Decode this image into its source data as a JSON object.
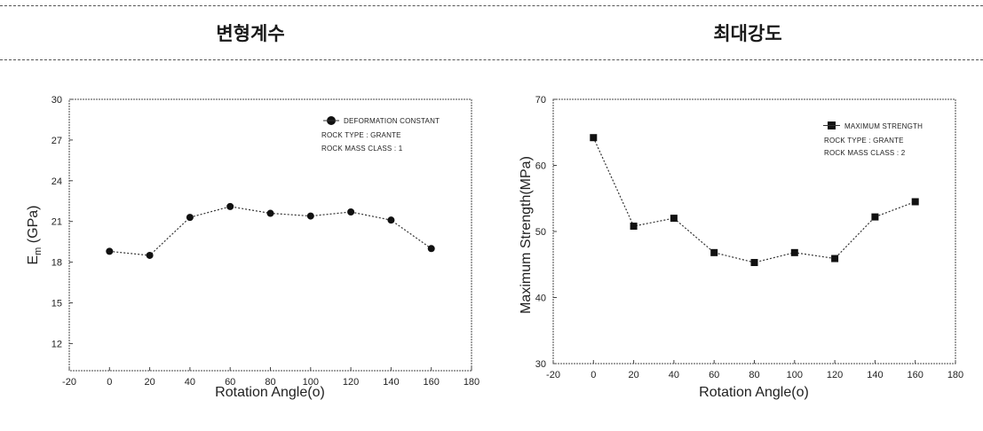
{
  "headers": {
    "left": "변형계수",
    "right": "최대강도"
  },
  "chart_data": [
    {
      "type": "line",
      "xlabel": "Rotation Angle(o)",
      "ylabel_main": "E",
      "ylabel_sub": "m",
      "ylabel_rest": " (GPa)",
      "xlim": [
        -20,
        180
      ],
      "ylim": [
        10,
        30
      ],
      "xticks": [
        "-20",
        "0",
        "20",
        "40",
        "60",
        "80",
        "100",
        "120",
        "140",
        "160",
        "180"
      ],
      "yticks": [
        "12",
        "15",
        "18",
        "21",
        "24",
        "27",
        "30"
      ],
      "legend": {
        "series_label": "DEFORMATION CONSTANT",
        "line2": "ROCK TYPE : GRANTE",
        "line3": "ROCK MASS CLASS : 1"
      },
      "marker": "circle",
      "series": [
        {
          "x": [
            0,
            20,
            40,
            60,
            80,
            100,
            120,
            140,
            160
          ],
          "y": [
            18.8,
            18.5,
            21.3,
            22.1,
            21.6,
            21.4,
            21.7,
            21.1,
            19.0
          ]
        }
      ]
    },
    {
      "type": "line",
      "xlabel": "Rotation Angle(o)",
      "ylabel": "Maximum Strength(MPa)",
      "xlim": [
        -20,
        180
      ],
      "ylim": [
        30,
        70
      ],
      "xticks": [
        "-20",
        "0",
        "20",
        "40",
        "60",
        "80",
        "100",
        "120",
        "140",
        "160",
        "180"
      ],
      "yticks": [
        "30",
        "40",
        "50",
        "60",
        "70"
      ],
      "legend": {
        "series_label": "MAXIMUM STRENGTH",
        "line2": "ROCK TYPE : GRANTE",
        "line3": "ROCK MASS CLASS : 2"
      },
      "marker": "square",
      "series": [
        {
          "x": [
            0,
            20,
            40,
            60,
            80,
            100,
            120,
            140,
            160
          ],
          "y": [
            64.2,
            50.8,
            52.0,
            46.8,
            45.3,
            46.8,
            45.9,
            52.2,
            54.5
          ]
        }
      ]
    }
  ]
}
